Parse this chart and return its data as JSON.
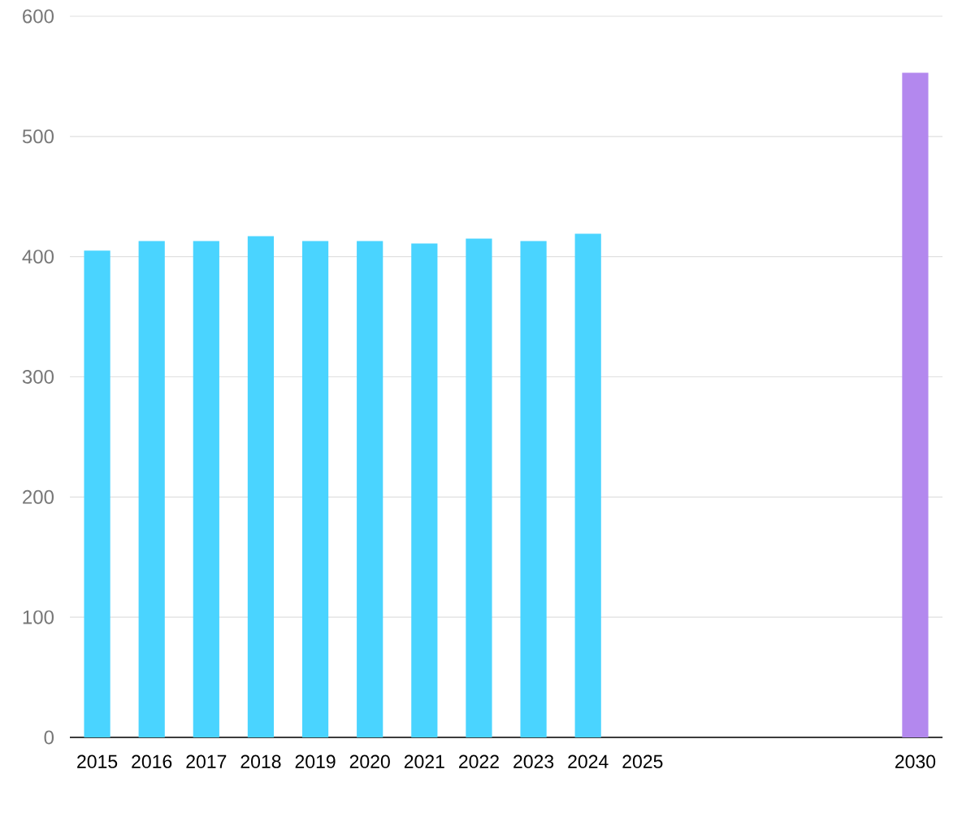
{
  "chart_data": {
    "type": "bar",
    "categories": [
      "2015",
      "2016",
      "2017",
      "2018",
      "2019",
      "2020",
      "2021",
      "2022",
      "2023",
      "2024",
      "2025",
      null,
      null,
      null,
      null,
      "2030"
    ],
    "values": [
      405,
      413,
      413,
      417,
      413,
      413,
      411,
      415,
      413,
      419,
      null,
      null,
      null,
      null,
      null,
      553
    ],
    "colors": [
      "#4ad4ff",
      "#4ad4ff",
      "#4ad4ff",
      "#4ad4ff",
      "#4ad4ff",
      "#4ad4ff",
      "#4ad4ff",
      "#4ad4ff",
      "#4ad4ff",
      "#4ad4ff",
      null,
      null,
      null,
      null,
      null,
      "#b388ee"
    ],
    "ylim": [
      0,
      600
    ],
    "yticks": [
      0,
      100,
      200,
      300,
      400,
      500,
      600
    ],
    "grid": "y"
  }
}
